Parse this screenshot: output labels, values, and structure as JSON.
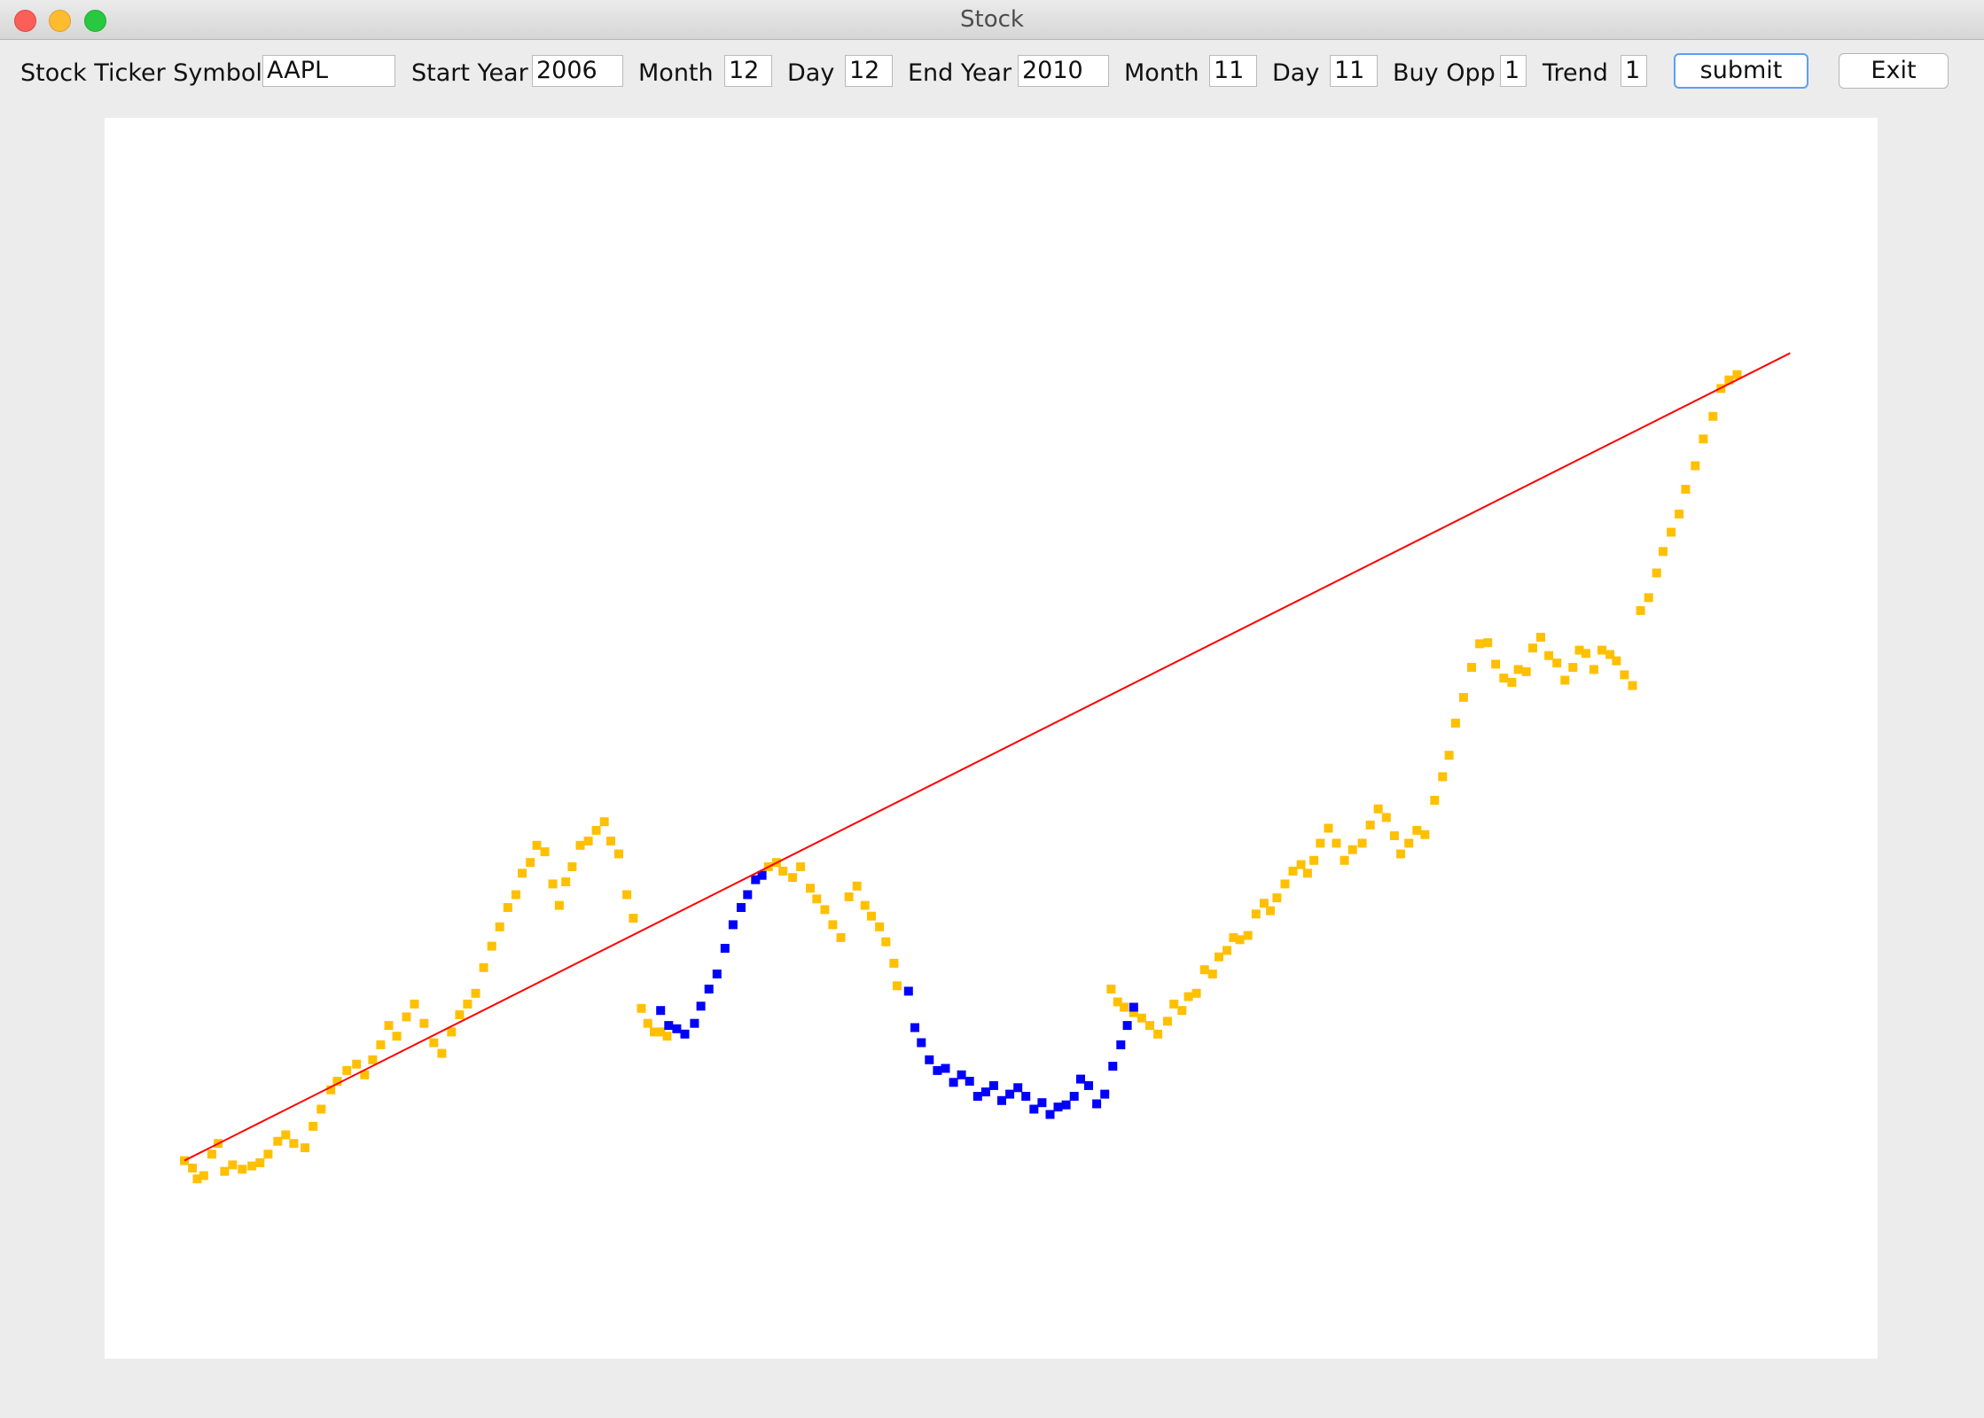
{
  "window": {
    "title": "Stock"
  },
  "form": {
    "ticker_label": "Stock Ticker Symbol",
    "ticker_value": "AAPL",
    "start_year_label": "Start Year",
    "start_year_value": "2006",
    "start_month_label": "Month",
    "start_month_value": "12",
    "start_day_label": "Day",
    "start_day_value": "12",
    "end_year_label": "End Year",
    "end_year_value": "2010",
    "end_month_label": "Month",
    "end_month_value": "11",
    "end_day_label": "Day",
    "end_day_value": "11",
    "buy_opp_label": "Buy Opp",
    "buy_opp_value": "1",
    "trend_label": "Trend",
    "trend_value": "1",
    "submit_label": "submit",
    "exit_label": "Exit"
  },
  "chart_data": {
    "type": "scatter",
    "title": "",
    "xlabel": "",
    "ylabel": "",
    "grid": false,
    "legend": "none",
    "colors": {
      "background": "#ffffff",
      "normal_points": "#ffc000",
      "buy_opportunity_points": "#0000ff",
      "trend_line": "#ff0000"
    },
    "xlim": [
      0,
      1000
    ],
    "ylim": [
      0,
      1000
    ],
    "series": [
      {
        "role": "price",
        "color": "#ffc000",
        "points": [
          [
            0,
            102
          ],
          [
            5,
            95
          ],
          [
            8,
            85
          ],
          [
            12,
            88
          ],
          [
            17,
            108
          ],
          [
            21,
            118
          ],
          [
            25,
            92
          ],
          [
            30,
            98
          ],
          [
            36,
            94
          ],
          [
            42,
            97
          ],
          [
            47,
            100
          ],
          [
            52,
            108
          ],
          [
            58,
            120
          ],
          [
            63,
            126
          ],
          [
            68,
            118
          ],
          [
            75,
            114
          ],
          [
            80,
            134
          ],
          [
            85,
            150
          ],
          [
            91,
            168
          ],
          [
            95,
            176
          ],
          [
            101,
            186
          ],
          [
            107,
            192
          ],
          [
            112,
            182
          ],
          [
            117,
            196
          ],
          [
            122,
            210
          ],
          [
            127,
            228
          ],
          [
            132,
            218
          ],
          [
            138,
            236
          ],
          [
            143,
            248
          ],
          [
            149,
            230
          ],
          [
            155,
            212
          ],
          [
            160,
            202
          ],
          [
            166,
            222
          ],
          [
            171,
            238
          ],
          [
            176,
            248
          ],
          [
            181,
            258
          ],
          [
            186,
            282
          ],
          [
            191,
            302
          ],
          [
            196,
            320
          ],
          [
            201,
            338
          ],
          [
            206,
            350
          ],
          [
            210,
            370
          ],
          [
            215,
            380
          ],
          [
            219,
            396
          ],
          [
            224,
            390
          ],
          [
            229,
            360
          ],
          [
            233,
            340
          ],
          [
            237,
            362
          ],
          [
            241,
            376
          ],
          [
            246,
            396
          ],
          [
            251,
            400
          ],
          [
            256,
            410
          ],
          [
            261,
            418
          ],
          [
            265,
            400
          ],
          [
            270,
            388
          ],
          [
            275,
            350
          ],
          [
            279,
            328
          ],
          [
            284,
            244
          ],
          [
            288,
            230
          ],
          [
            292,
            222
          ],
          [
            296,
            222
          ],
          [
            300,
            218
          ],
          [
            363,
            376
          ],
          [
            368,
            380
          ],
          [
            372,
            372
          ],
          [
            378,
            366
          ],
          [
            383,
            376
          ],
          [
            389,
            356
          ],
          [
            393,
            346
          ],
          [
            398,
            336
          ],
          [
            403,
            322
          ],
          [
            408,
            310
          ],
          [
            413,
            348
          ],
          [
            418,
            358
          ],
          [
            423,
            340
          ],
          [
            427,
            330
          ],
          [
            432,
            320
          ],
          [
            436,
            306
          ],
          [
            441,
            286
          ],
          [
            443,
            265
          ],
          [
            576,
            262
          ],
          [
            580,
            250
          ],
          [
            584,
            245
          ],
          [
            590,
            240
          ],
          [
            595,
            235
          ],
          [
            600,
            228
          ],
          [
            605,
            220
          ],
          [
            611,
            232
          ],
          [
            615,
            248
          ],
          [
            620,
            242
          ],
          [
            624,
            255
          ],
          [
            629,
            258
          ],
          [
            634,
            280
          ],
          [
            639,
            276
          ],
          [
            643,
            292
          ],
          [
            648,
            298
          ],
          [
            652,
            310
          ],
          [
            656,
            308
          ],
          [
            661,
            312
          ],
          [
            666,
            332
          ],
          [
            671,
            342
          ],
          [
            675,
            335
          ],
          [
            679,
            347
          ],
          [
            684,
            360
          ],
          [
            689,
            372
          ],
          [
            694,
            378
          ],
          [
            698,
            370
          ],
          [
            702,
            382
          ],
          [
            706,
            398
          ],
          [
            711,
            412
          ],
          [
            716,
            398
          ],
          [
            721,
            382
          ],
          [
            726,
            392
          ],
          [
            732,
            398
          ],
          [
            737,
            415
          ],
          [
            742,
            430
          ],
          [
            747,
            422
          ],
          [
            752,
            405
          ],
          [
            756,
            388
          ],
          [
            761,
            398
          ],
          [
            766,
            410
          ],
          [
            771,
            406
          ],
          [
            777,
            438
          ],
          [
            782,
            460
          ],
          [
            786,
            480
          ],
          [
            790,
            510
          ],
          [
            795,
            534
          ],
          [
            800,
            562
          ],
          [
            805,
            584
          ],
          [
            810,
            585
          ],
          [
            815,
            565
          ],
          [
            820,
            552
          ],
          [
            825,
            548
          ],
          [
            829,
            560
          ],
          [
            834,
            558
          ],
          [
            838,
            580
          ],
          [
            843,
            590
          ],
          [
            848,
            573
          ],
          [
            853,
            566
          ],
          [
            858,
            550
          ],
          [
            863,
            562
          ],
          [
            867,
            578
          ],
          [
            871,
            575
          ],
          [
            876,
            560
          ],
          [
            881,
            578
          ],
          [
            886,
            574
          ],
          [
            890,
            568
          ],
          [
            895,
            555
          ],
          [
            900,
            545
          ],
          [
            905,
            615
          ],
          [
            910,
            627
          ],
          [
            915,
            650
          ],
          [
            919,
            670
          ],
          [
            924,
            688
          ],
          [
            929,
            705
          ],
          [
            933,
            728
          ],
          [
            939,
            750
          ],
          [
            944,
            775
          ],
          [
            950,
            796
          ],
          [
            955,
            822
          ],
          [
            960,
            830
          ],
          [
            965,
            835
          ]
        ]
      },
      {
        "role": "buy opportunity",
        "color": "#0000ff",
        "points": [
          [
            296,
            242
          ],
          [
            301,
            228
          ],
          [
            306,
            225
          ],
          [
            311,
            220
          ],
          [
            317,
            230
          ],
          [
            321,
            246
          ],
          [
            326,
            262
          ],
          [
            331,
            276
          ],
          [
            336,
            300
          ],
          [
            341,
            322
          ],
          [
            346,
            338
          ],
          [
            350,
            350
          ],
          [
            355,
            364
          ],
          [
            359,
            368
          ],
          [
            450,
            260
          ],
          [
            454,
            226
          ],
          [
            458,
            212
          ],
          [
            463,
            196
          ],
          [
            468,
            186
          ],
          [
            473,
            188
          ],
          [
            478,
            175
          ],
          [
            483,
            182
          ],
          [
            488,
            176
          ],
          [
            493,
            162
          ],
          [
            498,
            166
          ],
          [
            503,
            172
          ],
          [
            508,
            158
          ],
          [
            513,
            164
          ],
          [
            518,
            170
          ],
          [
            523,
            162
          ],
          [
            528,
            150
          ],
          [
            533,
            156
          ],
          [
            538,
            145
          ],
          [
            543,
            152
          ],
          [
            548,
            154
          ],
          [
            553,
            162
          ],
          [
            557,
            178
          ],
          [
            562,
            172
          ],
          [
            567,
            155
          ],
          [
            572,
            164
          ],
          [
            577,
            190
          ],
          [
            582,
            210
          ],
          [
            586,
            228
          ],
          [
            590,
            245
          ]
        ]
      }
    ],
    "trend_line": {
      "color": "#ff0000",
      "from": [
        0,
        102
      ],
      "to": [
        998,
        855
      ]
    }
  }
}
